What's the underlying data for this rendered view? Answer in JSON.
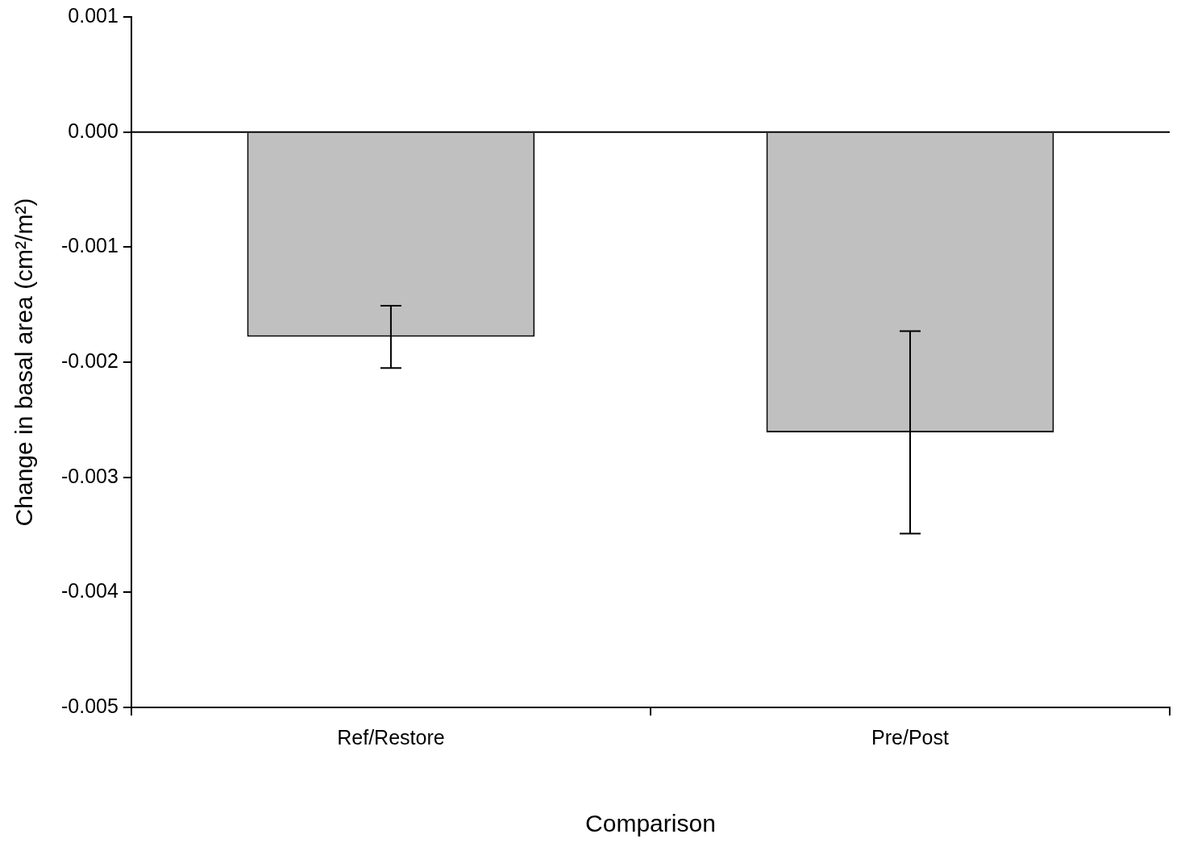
{
  "chart_data": {
    "type": "bar",
    "xlabel": "Comparison",
    "ylabel": "Change in basal area (cm²/m²)",
    "categories": [
      "Ref/Restore",
      "Pre/Post"
    ],
    "values": [
      -0.00178,
      -0.00261
    ],
    "errors": [
      0.00027,
      0.00088
    ],
    "color": "#c0c0c0",
    "ylim": [
      -0.005,
      0.001
    ],
    "yticks": [
      {
        "value": -0.005,
        "label": "-0.005"
      },
      {
        "value": -0.004,
        "label": "-0.004"
      },
      {
        "value": -0.003,
        "label": "-0.003"
      },
      {
        "value": -0.002,
        "label": "-0.002"
      },
      {
        "value": -0.001,
        "label": "-0.001"
      },
      {
        "value": 0,
        "label": "0.000"
      },
      {
        "value": 0.001,
        "label": "0.001"
      }
    ],
    "ref_lines": [
      {
        "axis": "y",
        "value": 0
      }
    ],
    "grid": false,
    "legend": false
  }
}
